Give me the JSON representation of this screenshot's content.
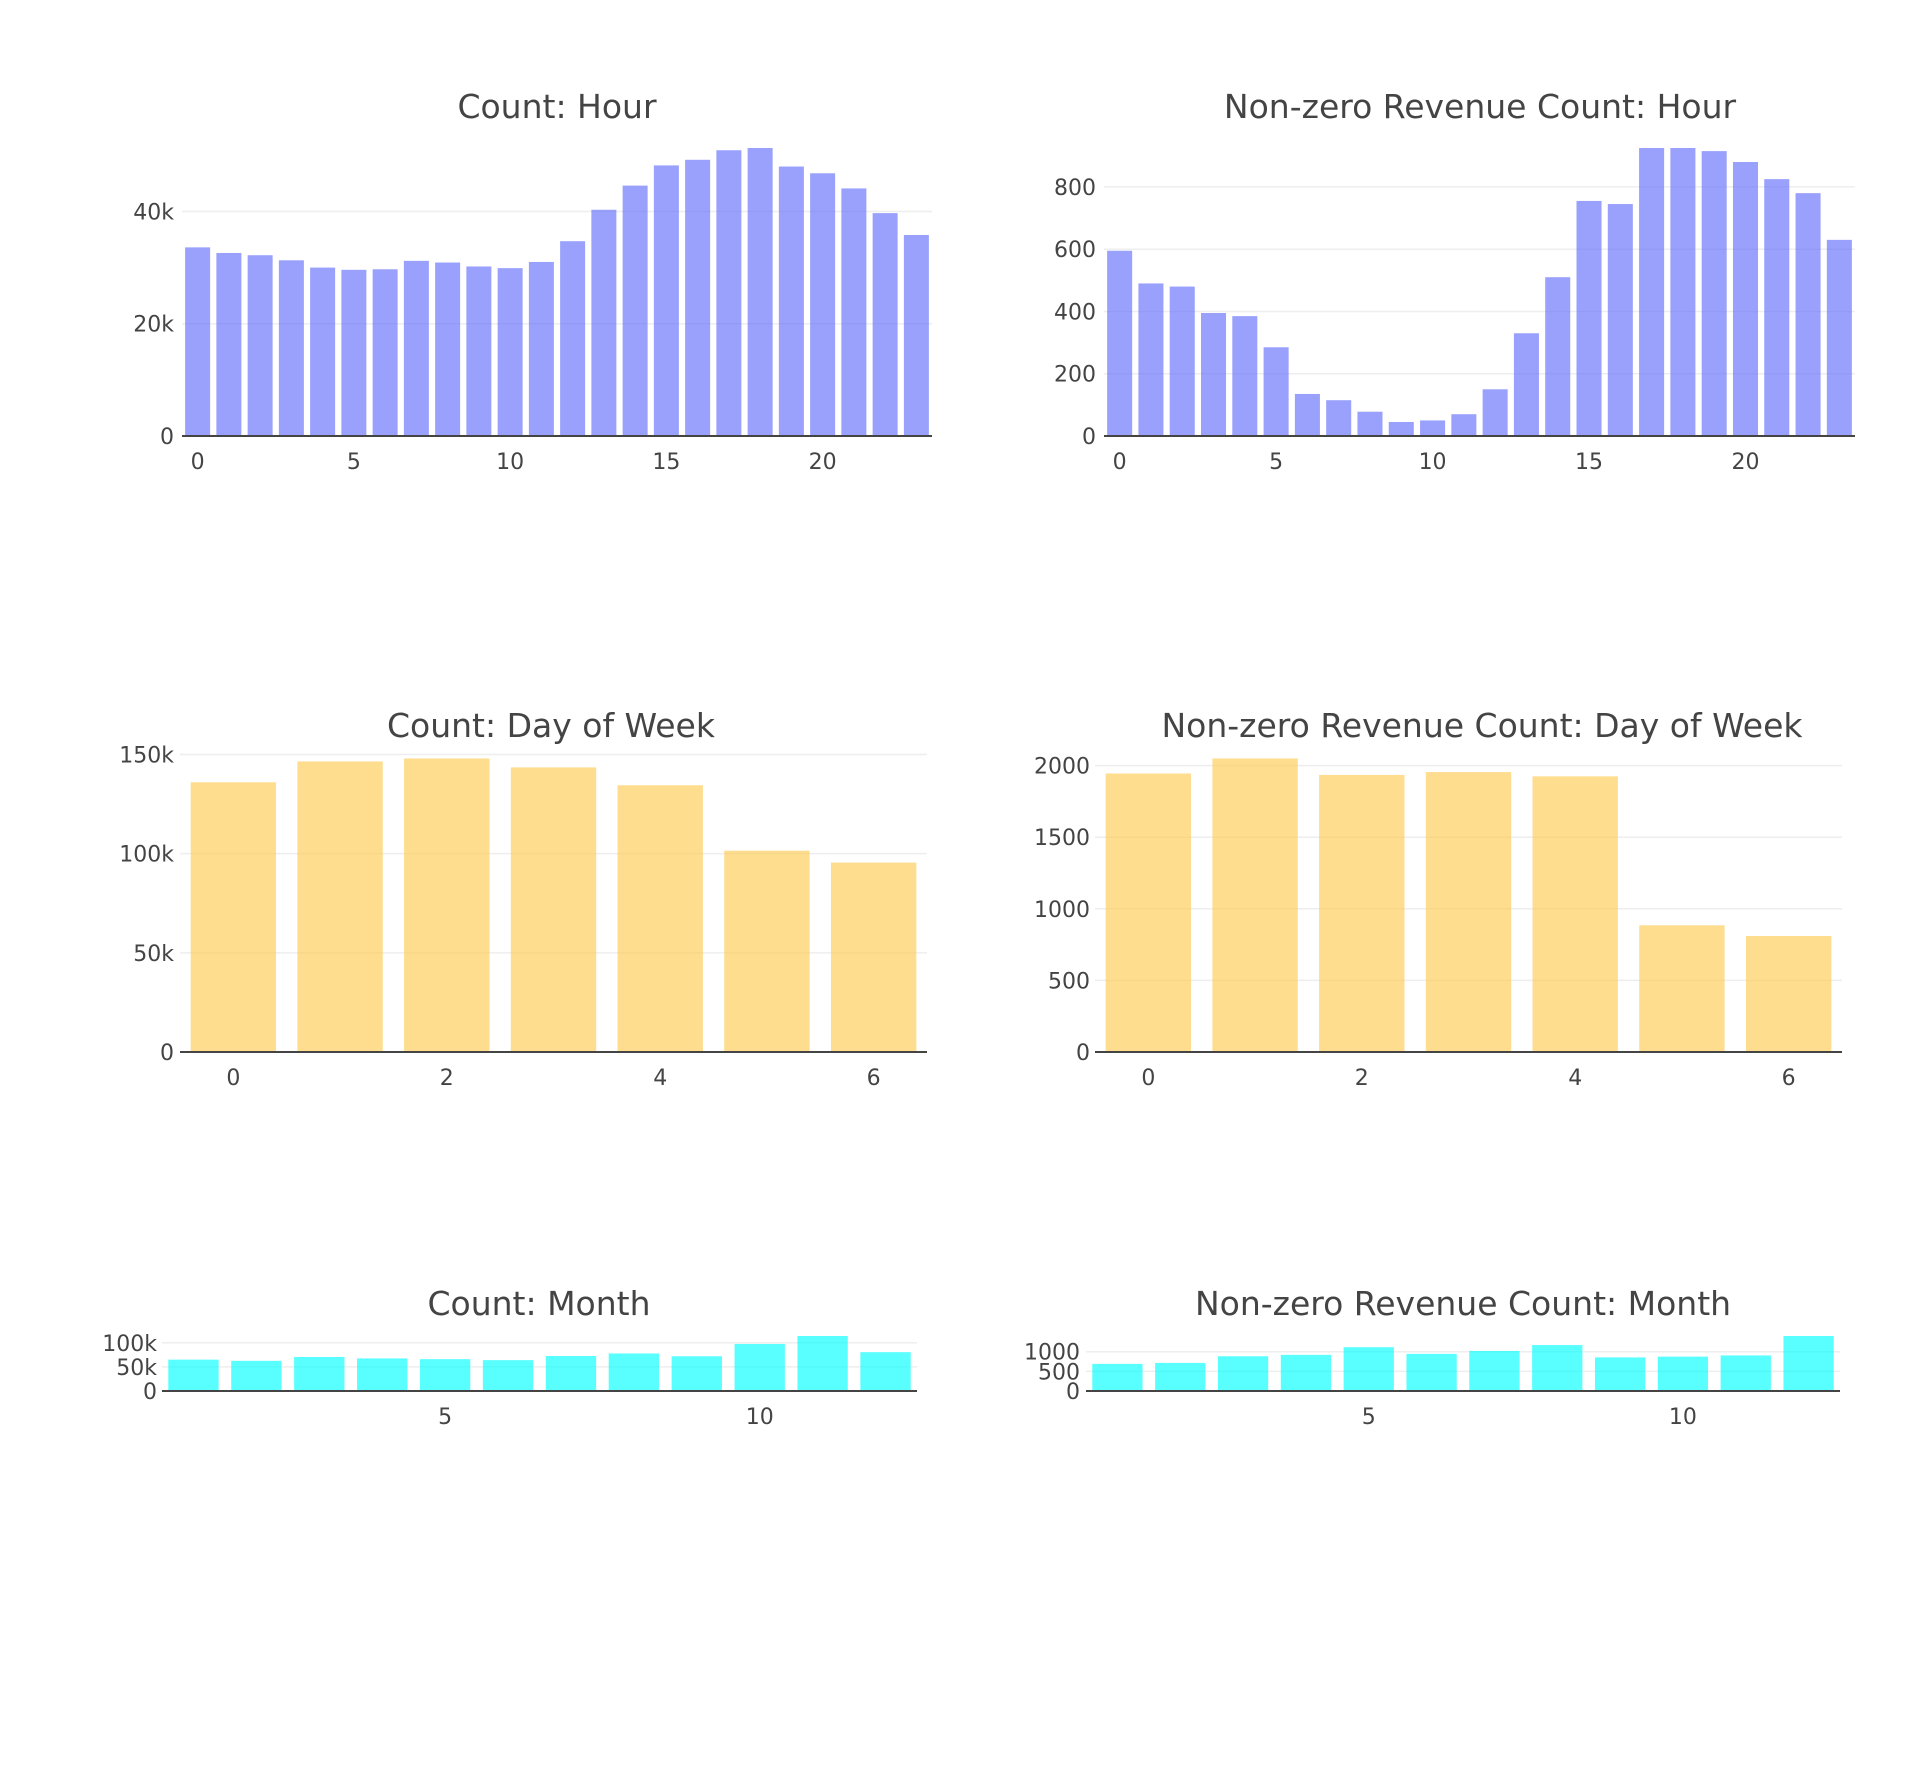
{
  "chart_data": [
    {
      "type": "bar",
      "title": "Count: Hour",
      "color": "#636efa",
      "x": [
        0,
        1,
        2,
        3,
        4,
        5,
        6,
        7,
        8,
        9,
        10,
        11,
        12,
        13,
        14,
        15,
        16,
        17,
        18,
        19,
        20,
        21,
        22,
        23
      ],
      "values": [
        33600,
        32600,
        32200,
        31300,
        30000,
        29600,
        29700,
        31200,
        30900,
        30200,
        29900,
        31000,
        34700,
        40300,
        44600,
        48200,
        49200,
        50900,
        51300,
        48000,
        46800,
        44100,
        39700,
        35800
      ],
      "xticks": [
        0,
        5,
        10,
        15,
        20
      ],
      "xtick_labels": [
        "0",
        "5",
        "10",
        "15",
        "20"
      ],
      "yticks": [
        0,
        20000,
        40000
      ],
      "ytick_labels": [
        "0",
        "20k",
        "40k"
      ],
      "xlim": [
        -0.5,
        23.5
      ],
      "ylim": [
        0,
        51300
      ],
      "grid": true
    },
    {
      "type": "bar",
      "title": "Non-zero Revenue Count: Hour",
      "color": "#636efa",
      "x": [
        0,
        1,
        2,
        3,
        4,
        5,
        6,
        7,
        8,
        9,
        10,
        11,
        12,
        13,
        14,
        15,
        16,
        17,
        18,
        19,
        20,
        21,
        22,
        23
      ],
      "values": [
        595,
        490,
        480,
        395,
        385,
        285,
        135,
        115,
        78,
        45,
        50,
        70,
        150,
        330,
        510,
        755,
        745,
        925,
        925,
        915,
        880,
        825,
        780,
        630
      ],
      "xticks": [
        0,
        5,
        10,
        15,
        20
      ],
      "xtick_labels": [
        "0",
        "5",
        "10",
        "15",
        "20"
      ],
      "yticks": [
        0,
        200,
        400,
        600,
        800
      ],
      "ytick_labels": [
        "0",
        "200",
        "400",
        "600",
        "800"
      ],
      "xlim": [
        -0.5,
        23.5
      ],
      "ylim": [
        0,
        925
      ],
      "grid": true
    },
    {
      "type": "bar",
      "title": "Count: Day of Week",
      "color": "#fecb52",
      "x": [
        0,
        1,
        2,
        3,
        4,
        5,
        6
      ],
      "values": [
        136000,
        146500,
        148000,
        143500,
        134500,
        101500,
        95500
      ],
      "xticks": [
        0,
        2,
        4,
        6
      ],
      "xtick_labels": [
        "0",
        "2",
        "4",
        "6"
      ],
      "yticks": [
        0,
        50000,
        100000,
        150000
      ],
      "ytick_labels": [
        "0",
        "50k",
        "100k",
        "150k"
      ],
      "xlim": [
        -0.5,
        6.5
      ],
      "ylim": [
        0,
        155800
      ],
      "grid": true
    },
    {
      "type": "bar",
      "title": "Non-zero Revenue Count: Day of Week",
      "color": "#fecb52",
      "x": [
        0,
        1,
        2,
        3,
        4,
        5,
        6
      ],
      "values": [
        1945,
        2050,
        1935,
        1955,
        1925,
        885,
        810
      ],
      "xticks": [
        0,
        2,
        4,
        6
      ],
      "xtick_labels": [
        "0",
        "2",
        "4",
        "6"
      ],
      "yticks": [
        0,
        500,
        1000,
        1500,
        2000
      ],
      "ytick_labels": [
        "0",
        "500",
        "1000",
        "1500",
        "2000"
      ],
      "xlim": [
        -0.5,
        6.5
      ],
      "ylim": [
        0,
        2158
      ],
      "grid": true
    },
    {
      "type": "bar",
      "title": "Count: Month",
      "color": "#00ffff",
      "x": [
        1,
        2,
        3,
        4,
        5,
        6,
        7,
        8,
        9,
        10,
        11,
        12
      ],
      "values": [
        65000,
        62500,
        70500,
        67500,
        66000,
        64000,
        72500,
        77800,
        72000,
        97500,
        114000,
        80500
      ],
      "xticks": [
        5,
        10
      ],
      "xtick_labels": [
        "5",
        "10"
      ],
      "yticks": [
        0,
        50000,
        100000
      ],
      "ytick_labels": [
        "0",
        "50k",
        "100k"
      ],
      "xlim": [
        0.5,
        12.5
      ],
      "ylim": [
        0,
        114000
      ],
      "grid": true
    },
    {
      "type": "bar",
      "title": "Non-zero Revenue Count: Month",
      "color": "#00ffff",
      "x": [
        1,
        2,
        3,
        4,
        5,
        6,
        7,
        8,
        9,
        10,
        11,
        12
      ],
      "values": [
        690,
        715,
        885,
        920,
        1115,
        945,
        1020,
        1170,
        855,
        875,
        905,
        1400
      ],
      "xticks": [
        5,
        10
      ],
      "xtick_labels": [
        "5",
        "10"
      ],
      "yticks": [
        0,
        500,
        1000
      ],
      "ytick_labels": [
        "0",
        "500",
        "1000"
      ],
      "xlim": [
        0.5,
        12.5
      ],
      "ylim": [
        0,
        1400
      ],
      "grid": true
    }
  ]
}
